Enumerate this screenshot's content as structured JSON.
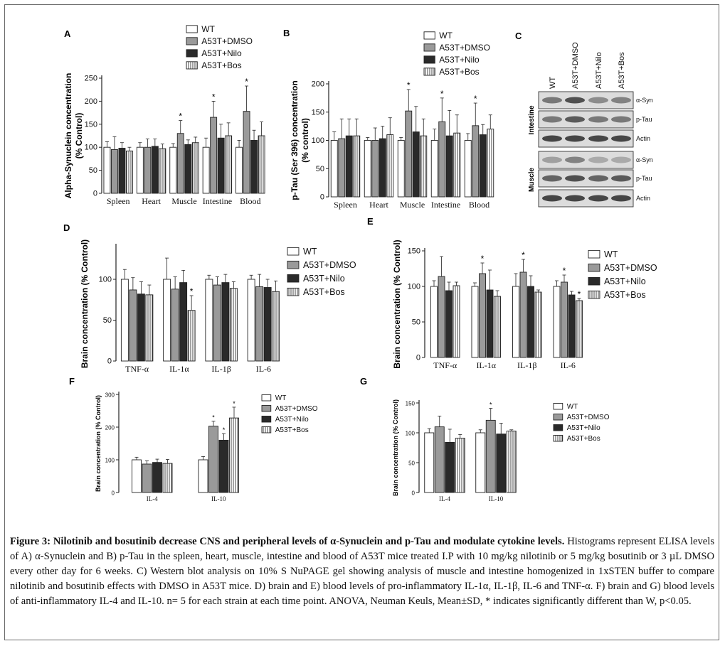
{
  "legend_labels": [
    "WT",
    "A53T+DMSO",
    "A53T+Nilo",
    "A53T+Bos"
  ],
  "colors": {
    "WT": "#ffffff",
    "DMSO": "#9a9a9a",
    "Nilo": "#2a2a2a",
    "Bos": "#ffffff",
    "axis": "#222222"
  },
  "chart_data": [
    {
      "id": "A",
      "type": "bar",
      "panel_label": "A",
      "categories": [
        "Spleen",
        "Heart",
        "Muscle",
        "Intestine",
        "Blood"
      ],
      "ylabel": "Alpha-Synuclein concentration (% Control)",
      "ylabel_lines": [
        "Alpha-Synuclein concentration",
        "(% Control)"
      ],
      "ylim": [
        0,
        250
      ],
      "yticks": [
        0,
        50,
        100,
        150,
        200,
        250
      ],
      "series": [
        {
          "name": "WT",
          "values": [
            100,
            100,
            100,
            100,
            100
          ],
          "err": [
            12,
            10,
            8,
            20,
            15
          ]
        },
        {
          "name": "A53T+DMSO",
          "values": [
            95,
            100,
            130,
            165,
            178
          ],
          "err": [
            28,
            18,
            28,
            35,
            55
          ]
        },
        {
          "name": "A53T+Nilo",
          "values": [
            98,
            102,
            106,
            120,
            115
          ],
          "err": [
            12,
            16,
            10,
            30,
            22
          ]
        },
        {
          "name": "A53T+Bos",
          "values": [
            92,
            97,
            110,
            125,
            125
          ],
          "err": [
            8,
            10,
            12,
            28,
            30
          ]
        }
      ],
      "stars": [
        null,
        null,
        "*",
        "*",
        "*"
      ]
    },
    {
      "id": "B",
      "type": "bar",
      "panel_label": "B",
      "categories": [
        "Spleen",
        "Heart",
        "Muscle",
        "Intestine",
        "Blood"
      ],
      "ylabel": "p-Tau (Ser 396) concentration (% control)",
      "ylabel_lines": [
        "p-Tau (Ser 396) concentration",
        "(% control)"
      ],
      "ylim": [
        0,
        200
      ],
      "yticks": [
        0,
        50,
        100,
        150,
        200
      ],
      "series": [
        {
          "name": "WT",
          "values": [
            100,
            100,
            100,
            100,
            100
          ],
          "err": [
            15,
            5,
            5,
            20,
            12
          ]
        },
        {
          "name": "A53T+DMSO",
          "values": [
            103,
            100,
            152,
            133,
            126
          ],
          "err": [
            35,
            22,
            38,
            42,
            40
          ]
        },
        {
          "name": "A53T+Nilo",
          "values": [
            108,
            103,
            115,
            108,
            110
          ],
          "err": [
            30,
            22,
            45,
            45,
            18
          ]
        },
        {
          "name": "A53T+Bos",
          "values": [
            108,
            110,
            108,
            113,
            120
          ],
          "err": [
            30,
            30,
            30,
            32,
            25
          ]
        }
      ],
      "stars": [
        null,
        null,
        "*",
        "*",
        "*"
      ]
    },
    {
      "id": "D",
      "type": "bar",
      "panel_label": "D",
      "categories": [
        "TNF-α",
        "IL-1α",
        "IL-1β",
        "IL-6"
      ],
      "ylabel": "Brain concentration (% Control)",
      "ylim": [
        0,
        140
      ],
      "yticks": [
        0,
        50,
        100
      ],
      "series": [
        {
          "name": "WT",
          "values": [
            100,
            100,
            100,
            100
          ],
          "err": [
            12,
            26,
            5,
            5
          ]
        },
        {
          "name": "A53T+DMSO",
          "values": [
            87,
            88,
            93,
            91
          ],
          "err": [
            15,
            15,
            10,
            15
          ]
        },
        {
          "name": "A53T+Nilo",
          "values": [
            82,
            96,
            96,
            90
          ],
          "err": [
            15,
            15,
            10,
            10
          ]
        },
        {
          "name": "A53T+Bos",
          "values": [
            81,
            62,
            89,
            85
          ],
          "err": [
            12,
            18,
            8,
            13
          ]
        }
      ],
      "stars": [
        {
          "series": 3,
          "index": 1,
          "mark": "*"
        }
      ]
    },
    {
      "id": "E",
      "type": "bar",
      "panel_label": "E",
      "categories": [
        "TNF-α",
        "IL-1α",
        "IL-1β",
        "IL-6"
      ],
      "ylabel": "Brain concentration (% Control)",
      "ylim": [
        0,
        150
      ],
      "yticks": [
        0,
        50,
        100,
        150
      ],
      "series": [
        {
          "name": "WT",
          "values": [
            100,
            100,
            100,
            100
          ],
          "err": [
            8,
            5,
            18,
            8
          ]
        },
        {
          "name": "A53T+DMSO",
          "values": [
            114,
            118,
            120,
            106
          ],
          "err": [
            28,
            15,
            18,
            10
          ]
        },
        {
          "name": "A53T+Nilo",
          "values": [
            94,
            95,
            100,
            88
          ],
          "err": [
            12,
            28,
            15,
            5
          ]
        },
        {
          "name": "A53T+Bos",
          "values": [
            101,
            86,
            92,
            80
          ],
          "err": [
            5,
            8,
            3,
            3
          ]
        }
      ],
      "stars": [
        {
          "series": 1,
          "index": 1,
          "mark": "*"
        },
        {
          "series": 1,
          "index": 2,
          "mark": "*"
        },
        {
          "series": 1,
          "index": 3,
          "mark": "*"
        },
        {
          "series": 3,
          "index": 3,
          "mark": "*"
        }
      ]
    },
    {
      "id": "F",
      "type": "bar",
      "panel_label": "F",
      "categories": [
        "IL-4",
        "IL-10"
      ],
      "ylabel": "Brain concentration (% Control)",
      "ylim": [
        0,
        300
      ],
      "yticks": [
        0,
        100,
        200,
        300
      ],
      "series": [
        {
          "name": "WT",
          "values": [
            100,
            100
          ],
          "err": [
            8,
            10
          ]
        },
        {
          "name": "A53T+DMSO",
          "values": [
            87,
            203
          ],
          "err": [
            10,
            15
          ]
        },
        {
          "name": "A53T+Nilo",
          "values": [
            92,
            160
          ],
          "err": [
            10,
            20
          ]
        },
        {
          "name": "A53T+Bos",
          "values": [
            89,
            228
          ],
          "err": [
            12,
            33
          ]
        }
      ],
      "stars": [
        {
          "series": 1,
          "index": 1,
          "mark": "*"
        },
        {
          "series": 2,
          "index": 1,
          "mark": "*"
        },
        {
          "series": 3,
          "index": 1,
          "mark": "*"
        }
      ]
    },
    {
      "id": "G",
      "type": "bar",
      "panel_label": "G",
      "categories": [
        "IL-4",
        "IL-10"
      ],
      "ylabel": "Brain concentration (% Control)",
      "ylim": [
        0,
        150
      ],
      "yticks": [
        0,
        50,
        100,
        150
      ],
      "series": [
        {
          "name": "WT",
          "values": [
            100,
            100
          ],
          "err": [
            7,
            5
          ]
        },
        {
          "name": "A53T+DMSO",
          "values": [
            110,
            121
          ],
          "err": [
            18,
            20
          ]
        },
        {
          "name": "A53T+Nilo",
          "values": [
            84,
            98
          ],
          "err": [
            22,
            18
          ]
        },
        {
          "name": "A53T+Bos",
          "values": [
            91,
            103
          ],
          "err": [
            6,
            2
          ]
        }
      ],
      "stars": [
        {
          "series": 1,
          "index": 1,
          "mark": "*"
        }
      ]
    }
  ],
  "blot": {
    "panel_label": "C",
    "lanes": [
      "WT",
      "A53T+DMSO",
      "A53T+Nilo",
      "A53T+Bos"
    ],
    "sections": [
      {
        "name": "Intestine",
        "bands": [
          "α-Syn",
          "p-Tau",
          "Actin"
        ]
      },
      {
        "name": "Muscle",
        "bands": [
          "α-Syn",
          "p-Tau",
          "Actin"
        ]
      }
    ]
  },
  "caption": {
    "bold": "Figure 3: Nilotinib and bosutinib decrease CNS and peripheral levels of α-Synuclein and p-Tau and modulate cytokine levels.",
    "text": " Histograms represent ELISA levels of A) α-Synuclein and B) p-Tau in the spleen, heart, muscle, intestine and blood of A53T mice treated I.P with 10 mg/kg nilotinib or 5 mg/kg bosutinib or 3 µL DMSO every other day for 6 weeks. C) Western blot analysis on 10% S NuPAGE gel showing analysis of muscle and intestine homogenized in 1xSTEN buffer to compare nilotinib and bosutinib effects with DMSO in A53T mice. D) brain and E) blood levels of pro-inflammatory IL-1α, IL-1β, IL-6 and TNF-α. F) brain and G) blood levels of anti-inflammatory IL-4 and IL-10. n= 5 for each strain at each time point. ANOVA, Neuman Keuls, Mean±SD, * indicates significantly different than W, p<0.05."
  }
}
